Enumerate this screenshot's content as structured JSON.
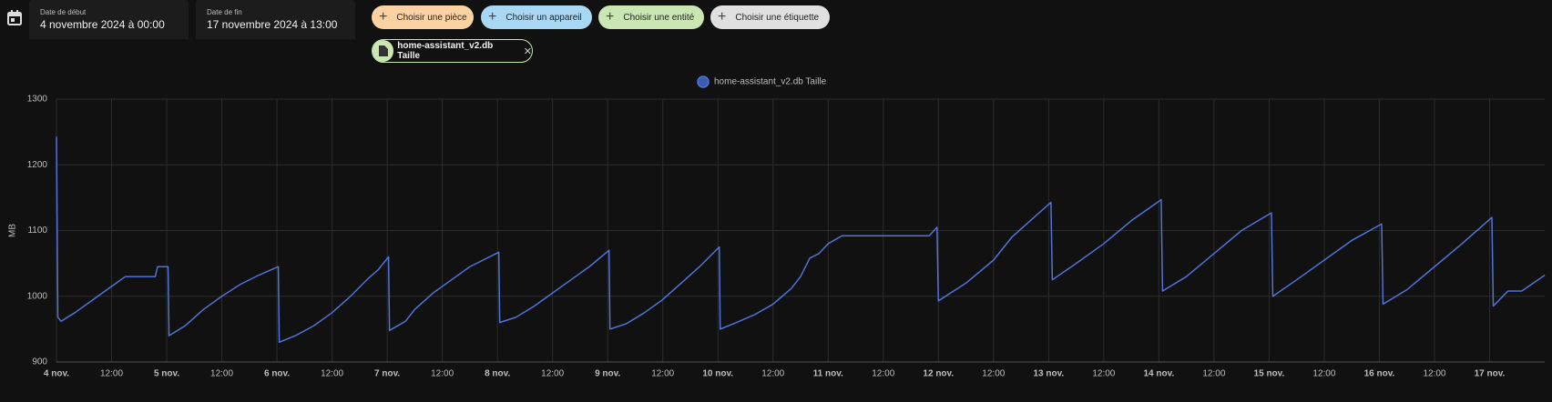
{
  "toolbar": {
    "start": {
      "label": "Date de début",
      "value": "4 novembre 2024 à 00:00"
    },
    "end": {
      "label": "Date de fin",
      "value": "17 novembre 2024 à 13:00"
    },
    "chips": [
      "Choisir une pièce",
      "Choisir un appareil",
      "Choisir une entité",
      "Choisir une étiquette"
    ],
    "selected": "home-assistant_v2.db Taille"
  },
  "chart_data": {
    "type": "line",
    "ylabel": "MB",
    "xlim": [
      0,
      324
    ],
    "ylim": [
      900,
      1300
    ],
    "yticks": [
      900,
      1000,
      1100,
      1200,
      1300
    ],
    "xticks": [
      {
        "value": 0,
        "label": "4 nov."
      },
      {
        "value": 12,
        "label": "12:00"
      },
      {
        "value": 24,
        "label": "5 nov."
      },
      {
        "value": 36,
        "label": "12:00"
      },
      {
        "value": 48,
        "label": "6 nov."
      },
      {
        "value": 60,
        "label": "12:00"
      },
      {
        "value": 72,
        "label": "7 nov."
      },
      {
        "value": 84,
        "label": "12:00"
      },
      {
        "value": 96,
        "label": "8 nov."
      },
      {
        "value": 108,
        "label": "12:00"
      },
      {
        "value": 120,
        "label": "9 nov."
      },
      {
        "value": 132,
        "label": "12:00"
      },
      {
        "value": 144,
        "label": "10 nov."
      },
      {
        "value": 156,
        "label": "12:00"
      },
      {
        "value": 168,
        "label": "11 nov."
      },
      {
        "value": 180,
        "label": "12:00"
      },
      {
        "value": 192,
        "label": "12 nov."
      },
      {
        "value": 204,
        "label": "12:00"
      },
      {
        "value": 216,
        "label": "13 nov."
      },
      {
        "value": 228,
        "label": "12:00"
      },
      {
        "value": 240,
        "label": "14 nov."
      },
      {
        "value": 252,
        "label": "12:00"
      },
      {
        "value": 264,
        "label": "15 nov."
      },
      {
        "value": 276,
        "label": "12:00"
      },
      {
        "value": 288,
        "label": "16 nov."
      },
      {
        "value": 300,
        "label": "12:00"
      },
      {
        "value": 312,
        "label": "17 nov."
      }
    ],
    "grid": true,
    "x": [
      0,
      0.3,
      1,
      4,
      8,
      12,
      15,
      21.5,
      22,
      24.3,
      24.5,
      28,
      32,
      36,
      40,
      44,
      48.3,
      48.5,
      52,
      56,
      60,
      64,
      68,
      70,
      72.3,
      72.5,
      76,
      78,
      82,
      86,
      90,
      96.3,
      96.5,
      100,
      104,
      108,
      112,
      116,
      120.3,
      120.5,
      124,
      128,
      132,
      136,
      140,
      144.3,
      144.5,
      148,
      152,
      156,
      158,
      160,
      162,
      164,
      166,
      168,
      170,
      171,
      190,
      191.7,
      192,
      198,
      204,
      208,
      212,
      216.5,
      216.8,
      222,
      228,
      234,
      240.5,
      240.8,
      246,
      252,
      258,
      264.5,
      264.8,
      270,
      276,
      282,
      288.5,
      288.8,
      294,
      300,
      306,
      312.5,
      312.8,
      316,
      319,
      324
    ],
    "series": [
      {
        "name": "home-assistant_v2.db Taille",
        "color": "#4f73d9",
        "values": [
          1243,
          968,
          962,
          975,
          995,
          1015,
          1030,
          1030,
          1045,
          1045,
          940,
          955,
          980,
          1000,
          1018,
          1032,
          1045,
          930,
          940,
          955,
          975,
          1000,
          1028,
          1040,
          1060,
          948,
          962,
          980,
          1005,
          1025,
          1045,
          1067,
          960,
          968,
          985,
          1005,
          1025,
          1045,
          1070,
          950,
          958,
          975,
          995,
          1020,
          1045,
          1075,
          950,
          960,
          972,
          988,
          1000,
          1012,
          1030,
          1058,
          1065,
          1080,
          1088,
          1092,
          1092,
          1105,
          993,
          1020,
          1055,
          1090,
          1115,
          1143,
          1025,
          1050,
          1080,
          1115,
          1147,
          1008,
          1030,
          1065,
          1100,
          1127,
          1000,
          1025,
          1055,
          1085,
          1110,
          988,
          1010,
          1045,
          1080,
          1120,
          985,
          1008,
          1008,
          1032
        ]
      }
    ]
  }
}
